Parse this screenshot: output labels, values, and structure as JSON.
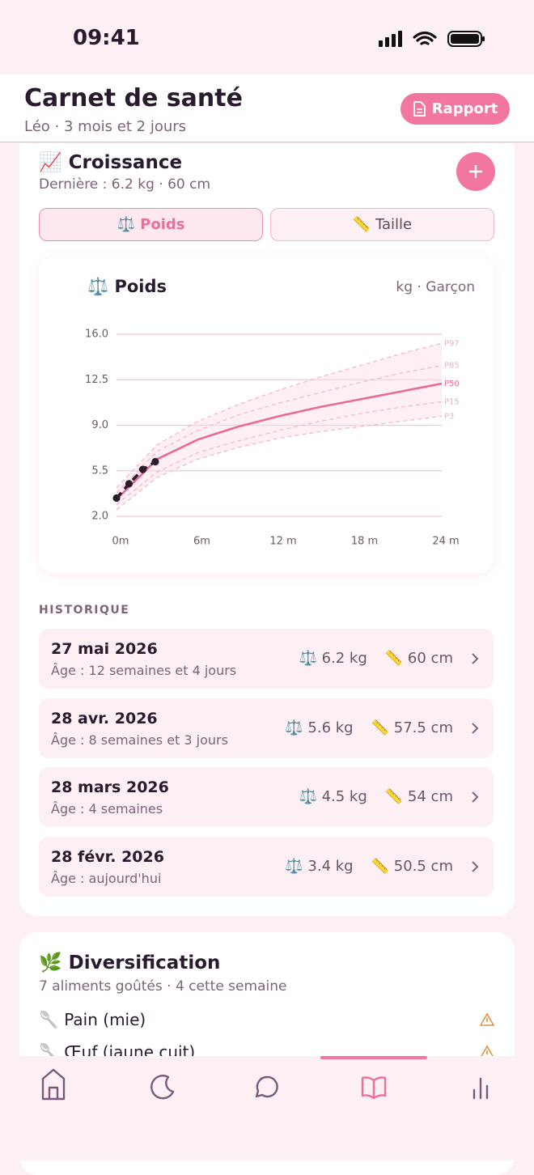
{
  "status": {
    "time": "09:41"
  },
  "header": {
    "title": "Carnet de santé",
    "subtitle": "Léo · 3 mois et 2 jours",
    "button": "Rapport"
  },
  "growth": {
    "title": "📈 Croissance",
    "subtitle": "Dernière : 6.2 kg · 60 cm",
    "tabs": [
      "⚖️ Poids",
      "📏 Taille"
    ]
  },
  "chart_data": {
    "type": "line",
    "title": "⚖️ Poids",
    "subtitle": "kg · Garçon",
    "xlim": [
      0,
      24
    ],
    "ylim": [
      2,
      16
    ],
    "xticks": [
      {
        "value": 0,
        "label": "0m"
      },
      {
        "value": 6,
        "label": "6m"
      },
      {
        "value": 12,
        "label": "12 m"
      },
      {
        "value": 18,
        "label": "18 m"
      },
      {
        "value": 24,
        "label": "24 m"
      }
    ],
    "yticks": [
      {
        "value": 16,
        "label": "16.0"
      },
      {
        "value": 12.5,
        "label": "12.5"
      },
      {
        "value": 9,
        "label": "9.0"
      },
      {
        "value": 5.5,
        "label": "5.5"
      },
      {
        "value": 2,
        "label": "2.0"
      }
    ],
    "grid": true,
    "series": [
      {
        "name": "P97",
        "color": "#f3b9ca",
        "dashed": true,
        "x": [
          0,
          3,
          6,
          9,
          12,
          15,
          18,
          21,
          24
        ],
        "values": [
          4.2,
          7.5,
          9.3,
          10.6,
          11.7,
          12.7,
          13.6,
          14.5,
          15.3
        ]
      },
      {
        "name": "P85",
        "color": "#f3b9ca",
        "dashed": true,
        "x": [
          0,
          3,
          6,
          9,
          12,
          15,
          18,
          21,
          24
        ],
        "values": [
          3.8,
          7.0,
          8.6,
          9.8,
          10.7,
          11.5,
          12.3,
          13.0,
          13.6
        ]
      },
      {
        "name": "P50",
        "color": "#e96a98",
        "dashed": false,
        "x": [
          0,
          3,
          6,
          9,
          12,
          15,
          18,
          21,
          24
        ],
        "values": [
          3.3,
          6.4,
          7.9,
          8.9,
          9.7,
          10.4,
          11.0,
          11.6,
          12.2
        ]
      },
      {
        "name": "P15",
        "color": "#f3b9ca",
        "dashed": true,
        "x": [
          0,
          3,
          6,
          9,
          12,
          15,
          18,
          21,
          24
        ],
        "values": [
          2.9,
          5.4,
          6.9,
          7.8,
          8.6,
          9.3,
          9.9,
          10.4,
          10.8
        ]
      },
      {
        "name": "P3",
        "color": "#f3b9ca",
        "dashed": true,
        "x": [
          0,
          3,
          6,
          9,
          12,
          15,
          18,
          21,
          24
        ],
        "values": [
          2.5,
          5.0,
          6.4,
          7.3,
          8.0,
          8.5,
          8.9,
          9.3,
          9.7
        ]
      },
      {
        "color": "#2b1d2b",
        "dashed": true,
        "points": true,
        "x": [
          0,
          0.92,
          1.94,
          2.86
        ],
        "values": [
          3.4,
          4.5,
          5.6,
          6.2
        ]
      }
    ]
  },
  "history": {
    "title": "HISTORIQUE",
    "rows": [
      {
        "date": "27 mai 2026",
        "age": "Âge : 12 semaines et 4 jours",
        "weight": "⚖️ 6.2 kg",
        "height": "📏 60 cm"
      },
      {
        "date": "28 avr. 2026",
        "age": "Âge : 8 semaines et 3 jours",
        "weight": "⚖️ 5.6 kg",
        "height": "📏 57.5 cm"
      },
      {
        "date": "28 mars 2026",
        "age": "Âge : 4 semaines",
        "weight": "⚖️ 4.5 kg",
        "height": "📏 54 cm"
      },
      {
        "date": "28 févr. 2026",
        "age": "Âge : aujourd'hui",
        "weight": "⚖️ 3.4 kg",
        "height": "📏 50.5 cm"
      }
    ]
  },
  "diversification": {
    "title": "🌿 Diversification",
    "subtitle": "7 aliments goûtés · 4 cette semaine",
    "items": [
      "🥄 Pain (mie)",
      "🥄 Œuf (jaune cuit)"
    ]
  }
}
